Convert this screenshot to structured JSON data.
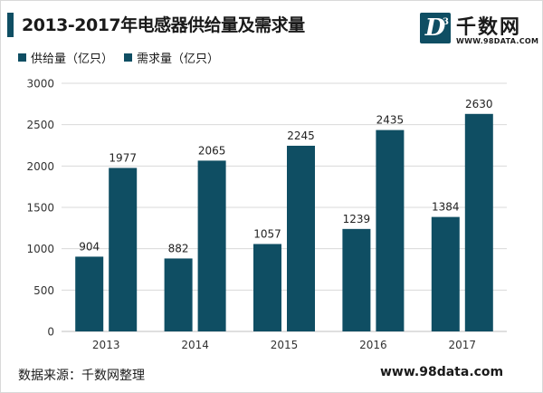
{
  "title": "2013-2017年电感器供给量及需求量",
  "logo": {
    "mark": "D",
    "mark_sup": "3",
    "name": "千数网",
    "domain": "WWW.98DATA.COM"
  },
  "footer": {
    "source": "数据来源：千数网整理",
    "site": "www.98data.com"
  },
  "colors": {
    "accent": "#0f4e63",
    "series": [
      "#0f4e63",
      "#0f4e63"
    ]
  },
  "chart_data": {
    "type": "bar",
    "title": "2013-2017年电感器供给量及需求量",
    "xlabel": "",
    "ylabel": "",
    "categories": [
      "2013",
      "2014",
      "2015",
      "2016",
      "2017"
    ],
    "series": [
      {
        "name": "供给量（亿只）",
        "values": [
          904,
          882,
          1057,
          1239,
          1384
        ]
      },
      {
        "name": "需求量（亿只）",
        "values": [
          1977,
          2065,
          2245,
          2435,
          2630
        ]
      }
    ],
    "ylim": [
      0,
      3000
    ],
    "yticks": [
      0,
      500,
      1000,
      1500,
      2000,
      2500,
      3000
    ],
    "grid": true,
    "legend": "top-left",
    "data_labels": true
  }
}
